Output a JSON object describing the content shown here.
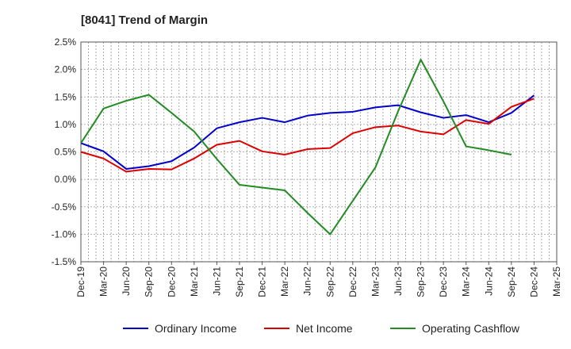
{
  "chart_data": {
    "type": "line",
    "title": "[8041]  Trend of Margin",
    "xlabel": "",
    "ylabel": "",
    "categories": [
      "Dec-19",
      "Mar-20",
      "Jun-20",
      "Sep-20",
      "Dec-20",
      "Mar-21",
      "Jun-21",
      "Sep-21",
      "Dec-21",
      "Mar-22",
      "Jun-22",
      "Sep-22",
      "Dec-22",
      "Mar-23",
      "Jun-23",
      "Sep-23",
      "Dec-23",
      "Mar-24",
      "Jun-24",
      "Sep-24",
      "Dec-24",
      "Mar-25"
    ],
    "ylim": [
      -1.5,
      2.5
    ],
    "yticks": [
      -1.5,
      -1.0,
      -0.5,
      0.0,
      0.5,
      1.0,
      1.5,
      2.0,
      2.5
    ],
    "ytick_labels": [
      "-1.5%",
      "-1.0%",
      "-0.5%",
      "0.0%",
      "0.5%",
      "1.0%",
      "1.5%",
      "2.0%",
      "2.5%"
    ],
    "grid": true,
    "legend_position": "bottom",
    "series": [
      {
        "name": "Ordinary Income",
        "color": "#0000cc",
        "values": [
          0.66,
          0.51,
          0.19,
          0.24,
          0.33,
          0.58,
          0.93,
          1.04,
          1.12,
          1.04,
          1.16,
          1.21,
          1.23,
          1.31,
          1.35,
          1.22,
          1.12,
          1.17,
          1.04,
          1.21,
          1.53,
          null
        ]
      },
      {
        "name": "Net Income",
        "color": "#dd0000",
        "values": [
          0.5,
          0.38,
          0.14,
          0.19,
          0.18,
          0.38,
          0.63,
          0.7,
          0.51,
          0.45,
          0.55,
          0.57,
          0.84,
          0.95,
          0.98,
          0.87,
          0.82,
          1.08,
          1.01,
          1.32,
          1.47,
          null
        ]
      },
      {
        "name": "Operating Cashflow",
        "color": "#228b22",
        "values": [
          0.66,
          1.29,
          1.43,
          1.54,
          1.21,
          0.87,
          0.37,
          -0.1,
          -0.15,
          -0.2,
          -0.61,
          -1.0,
          -0.39,
          0.22,
          1.24,
          2.18,
          1.42,
          0.6,
          0.53,
          0.45,
          null,
          null
        ]
      }
    ]
  }
}
